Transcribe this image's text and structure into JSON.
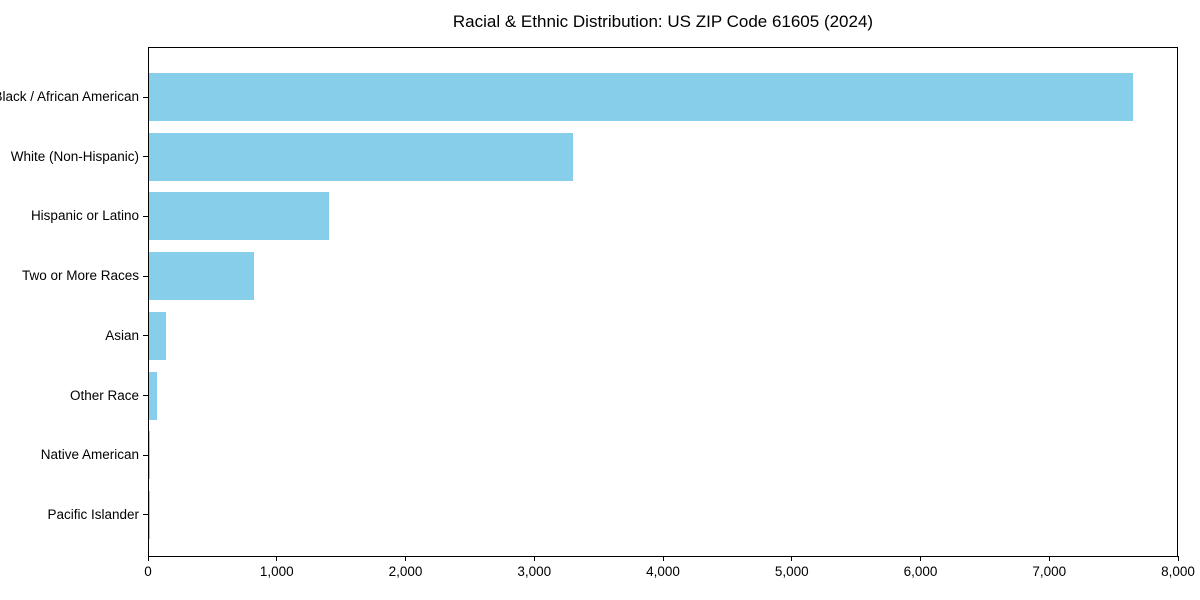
{
  "chart_data": {
    "type": "bar",
    "orientation": "horizontal",
    "title": "Racial & Ethnic Distribution: US ZIP Code 61605 (2024)",
    "categories": [
      "Black / African American",
      "White (Non-Hispanic)",
      "Hispanic or Latino",
      "Two or More Races",
      "Asian",
      "Other Race",
      "Native American",
      "Pacific Islander"
    ],
    "values": [
      7640,
      3295,
      1395,
      815,
      130,
      60,
      5,
      2
    ],
    "xlabel": "",
    "ylabel": "",
    "xlim": [
      0,
      8000
    ],
    "xticks": [
      0,
      1000,
      2000,
      3000,
      4000,
      5000,
      6000,
      7000,
      8000
    ],
    "xtick_labels": [
      "0",
      "1,000",
      "2,000",
      "3,000",
      "4,000",
      "5,000",
      "6,000",
      "7,000",
      "8,000"
    ],
    "bar_color": "#87CEEB",
    "background_color": "#ffffff",
    "spine_color": "#000000",
    "grid": false,
    "legend": null
  }
}
